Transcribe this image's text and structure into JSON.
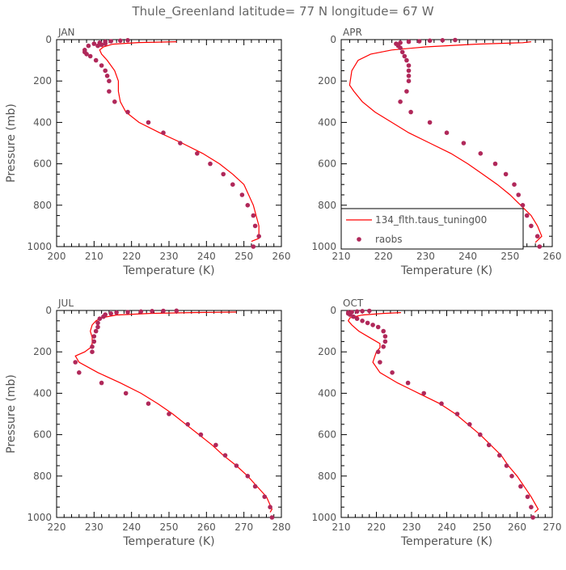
{
  "title": "Thule_Greenland   latitude= 77 N longitude= 67 W",
  "colors": {
    "model": "#ff0000",
    "raobs": "#b0285a",
    "axis": "#000000",
    "text": "#555555"
  },
  "legend": {
    "model_label": "134_flth.taus_tuning00",
    "raobs_label": "raobs",
    "placement": "bottom-left of APR panel"
  },
  "chart_data": [
    {
      "id": "jan",
      "type": "line+scatter",
      "month": "JAN",
      "xlabel": "Temperature (K)",
      "ylabel": "Pressure (mb)",
      "xlim": [
        200,
        260
      ],
      "xticks": [
        200,
        210,
        220,
        230,
        240,
        250,
        260
      ],
      "ylim": [
        1000,
        0
      ],
      "yticks": [
        0,
        200,
        400,
        600,
        800,
        1000
      ],
      "model": [
        [
          252,
          975
        ],
        [
          254,
          960
        ],
        [
          254,
          900
        ],
        [
          252.5,
          800
        ],
        [
          250,
          700
        ],
        [
          247,
          650
        ],
        [
          243.5,
          600
        ],
        [
          239,
          550
        ],
        [
          233.5,
          500
        ],
        [
          227.5,
          450
        ],
        [
          222,
          400
        ],
        [
          218.5,
          350
        ],
        [
          217,
          300
        ],
        [
          216.5,
          250
        ],
        [
          216.5,
          200
        ],
        [
          215.5,
          150
        ],
        [
          213.5,
          100
        ],
        [
          212,
          70
        ],
        [
          211.5,
          50
        ],
        [
          212.5,
          35
        ],
        [
          215,
          22
        ],
        [
          222,
          14
        ],
        [
          232,
          10
        ]
      ],
      "raobs": [
        [
          252.5,
          1000
        ],
        [
          254,
          950
        ],
        [
          253,
          900
        ],
        [
          252.5,
          850
        ],
        [
          251,
          800
        ],
        [
          249.5,
          750
        ],
        [
          247,
          700
        ],
        [
          244.5,
          650
        ],
        [
          241,
          600
        ],
        [
          237.5,
          550
        ],
        [
          233,
          500
        ],
        [
          228.5,
          450
        ],
        [
          224.5,
          400
        ],
        [
          219,
          350
        ],
        [
          215.5,
          300
        ],
        [
          214,
          250
        ],
        [
          214,
          200
        ],
        [
          213.5,
          175
        ],
        [
          213,
          150
        ],
        [
          212,
          125
        ],
        [
          210.5,
          100
        ],
        [
          209,
          80
        ],
        [
          208,
          70
        ],
        [
          207.5,
          60
        ],
        [
          207.5,
          50
        ],
        [
          208.5,
          30
        ],
        [
          210,
          20
        ],
        [
          211.5,
          15
        ],
        [
          213,
          10
        ],
        [
          214.5,
          8
        ],
        [
          217,
          5
        ],
        [
          219,
          3
        ],
        [
          211,
          30
        ],
        [
          212,
          25
        ],
        [
          213,
          20
        ]
      ]
    },
    {
      "id": "apr",
      "type": "line+scatter",
      "month": "APR",
      "xlabel": "Temperature (K)",
      "ylabel": "",
      "xlim": [
        210,
        260
      ],
      "xticks": [
        210,
        220,
        230,
        240,
        250,
        260
      ],
      "ylim": [
        1000,
        0
      ],
      "yticks": [
        0,
        200,
        400,
        600,
        800,
        1000
      ],
      "model": [
        [
          256,
          980
        ],
        [
          257.5,
          950
        ],
        [
          256.5,
          900
        ],
        [
          255,
          850
        ],
        [
          252.5,
          800
        ],
        [
          250,
          750
        ],
        [
          247,
          700
        ],
        [
          243.5,
          650
        ],
        [
          240,
          600
        ],
        [
          236,
          550
        ],
        [
          231,
          500
        ],
        [
          226,
          450
        ],
        [
          222,
          400
        ],
        [
          218,
          350
        ],
        [
          215,
          300
        ],
        [
          213,
          250
        ],
        [
          212,
          220
        ],
        [
          212.5,
          150
        ],
        [
          214,
          100
        ],
        [
          217,
          70
        ],
        [
          222,
          50
        ],
        [
          230,
          35
        ],
        [
          242,
          22
        ],
        [
          253,
          15
        ],
        [
          255,
          10
        ]
      ],
      "raobs": [
        [
          257,
          1000
        ],
        [
          256.5,
          950
        ],
        [
          255,
          900
        ],
        [
          254,
          850
        ],
        [
          253,
          800
        ],
        [
          252,
          750
        ],
        [
          251,
          700
        ],
        [
          249,
          650
        ],
        [
          246.5,
          600
        ],
        [
          243,
          550
        ],
        [
          239,
          500
        ],
        [
          235,
          450
        ],
        [
          231,
          400
        ],
        [
          226.5,
          350
        ],
        [
          224,
          300
        ],
        [
          225.5,
          250
        ],
        [
          226,
          200
        ],
        [
          226,
          175
        ],
        [
          226,
          150
        ],
        [
          226,
          125
        ],
        [
          225.5,
          100
        ],
        [
          225,
          80
        ],
        [
          224.5,
          60
        ],
        [
          224,
          40
        ],
        [
          223.5,
          30
        ],
        [
          223,
          20
        ],
        [
          224,
          15
        ],
        [
          226,
          10
        ],
        [
          228.5,
          8
        ],
        [
          231,
          5
        ],
        [
          234,
          3
        ],
        [
          237,
          2
        ]
      ]
    },
    {
      "id": "jul",
      "type": "line+scatter",
      "month": "JUL",
      "xlabel": "Temperature (K)",
      "ylabel": "Pressure (mb)",
      "xlim": [
        220,
        280
      ],
      "xticks": [
        220,
        230,
        240,
        250,
        260,
        270,
        280
      ],
      "ylim": [
        1000,
        0
      ],
      "yticks": [
        0,
        200,
        400,
        600,
        800,
        1000
      ],
      "model": [
        [
          277,
          975
        ],
        [
          277.5,
          960
        ],
        [
          276,
          900
        ],
        [
          273.5,
          850
        ],
        [
          271,
          800
        ],
        [
          268,
          750
        ],
        [
          264.5,
          700
        ],
        [
          261.5,
          650
        ],
        [
          258,
          600
        ],
        [
          254.5,
          550
        ],
        [
          251,
          500
        ],
        [
          247,
          450
        ],
        [
          242.5,
          400
        ],
        [
          237,
          350
        ],
        [
          231,
          300
        ],
        [
          226,
          250
        ],
        [
          225,
          220
        ],
        [
          227.5,
          200
        ],
        [
          229,
          180
        ],
        [
          229.5,
          160
        ],
        [
          229.5,
          130
        ],
        [
          229,
          100
        ],
        [
          229.5,
          70
        ],
        [
          230.5,
          50
        ],
        [
          232,
          35
        ],
        [
          236,
          22
        ],
        [
          245,
          14
        ],
        [
          256,
          10
        ],
        [
          268,
          8
        ]
      ],
      "raobs": [
        [
          277.5,
          1000
        ],
        [
          277,
          950
        ],
        [
          275.5,
          900
        ],
        [
          273,
          850
        ],
        [
          271,
          800
        ],
        [
          268,
          750
        ],
        [
          265,
          700
        ],
        [
          262.5,
          650
        ],
        [
          258.5,
          600
        ],
        [
          255,
          550
        ],
        [
          250,
          500
        ],
        [
          244.5,
          450
        ],
        [
          238.5,
          400
        ],
        [
          232,
          350
        ],
        [
          226,
          300
        ],
        [
          225,
          250
        ],
        [
          229.5,
          200
        ],
        [
          229.5,
          175
        ],
        [
          230,
          150
        ],
        [
          230,
          125
        ],
        [
          230.5,
          100
        ],
        [
          231,
          80
        ],
        [
          231,
          60
        ],
        [
          231.5,
          40
        ],
        [
          232.5,
          30
        ],
        [
          233,
          20
        ],
        [
          234.5,
          15
        ],
        [
          236,
          10
        ],
        [
          239,
          8
        ],
        [
          242.5,
          5
        ],
        [
          245.5,
          3
        ],
        [
          248.5,
          2
        ],
        [
          252,
          1
        ]
      ]
    },
    {
      "id": "oct",
      "type": "line+scatter",
      "month": "OCT",
      "xlabel": "Temperature (K)",
      "ylabel": "",
      "xlim": [
        210,
        270
      ],
      "xticks": [
        210,
        220,
        230,
        240,
        250,
        260,
        270
      ],
      "ylim": [
        1000,
        0
      ],
      "yticks": [
        0,
        200,
        400,
        600,
        800,
        1000
      ],
      "model": [
        [
          265,
          975
        ],
        [
          266,
          960
        ],
        [
          264,
          900
        ],
        [
          262,
          850
        ],
        [
          260,
          800
        ],
        [
          257.5,
          750
        ],
        [
          255.5,
          700
        ],
        [
          252.5,
          650
        ],
        [
          249.5,
          600
        ],
        [
          246,
          550
        ],
        [
          242.5,
          500
        ],
        [
          238,
          450
        ],
        [
          232,
          400
        ],
        [
          226,
          350
        ],
        [
          221,
          300
        ],
        [
          219,
          250
        ],
        [
          220,
          200
        ],
        [
          221,
          180
        ],
        [
          221,
          160
        ],
        [
          218,
          130
        ],
        [
          215,
          100
        ],
        [
          213,
          70
        ],
        [
          212,
          50
        ],
        [
          212.5,
          35
        ],
        [
          216,
          22
        ],
        [
          222,
          14
        ],
        [
          227,
          10
        ]
      ],
      "raobs": [
        [
          264.5,
          1000
        ],
        [
          264,
          950
        ],
        [
          263,
          900
        ],
        [
          261,
          850
        ],
        [
          258.5,
          800
        ],
        [
          257,
          750
        ],
        [
          255,
          700
        ],
        [
          252,
          650
        ],
        [
          249.5,
          600
        ],
        [
          246.5,
          550
        ],
        [
          243,
          500
        ],
        [
          238.5,
          450
        ],
        [
          233.5,
          400
        ],
        [
          229,
          350
        ],
        [
          224.5,
          300
        ],
        [
          221,
          250
        ],
        [
          220.5,
          200
        ],
        [
          222,
          175
        ],
        [
          222.5,
          150
        ],
        [
          222.5,
          125
        ],
        [
          222,
          100
        ],
        [
          220.5,
          80
        ],
        [
          219,
          70
        ],
        [
          217.5,
          60
        ],
        [
          216,
          50
        ],
        [
          214.5,
          40
        ],
        [
          213.5,
          30
        ],
        [
          212.5,
          20
        ],
        [
          212,
          15
        ],
        [
          212,
          10
        ],
        [
          213,
          8
        ],
        [
          214.5,
          5
        ],
        [
          216,
          3
        ],
        [
          218,
          2
        ]
      ]
    }
  ]
}
